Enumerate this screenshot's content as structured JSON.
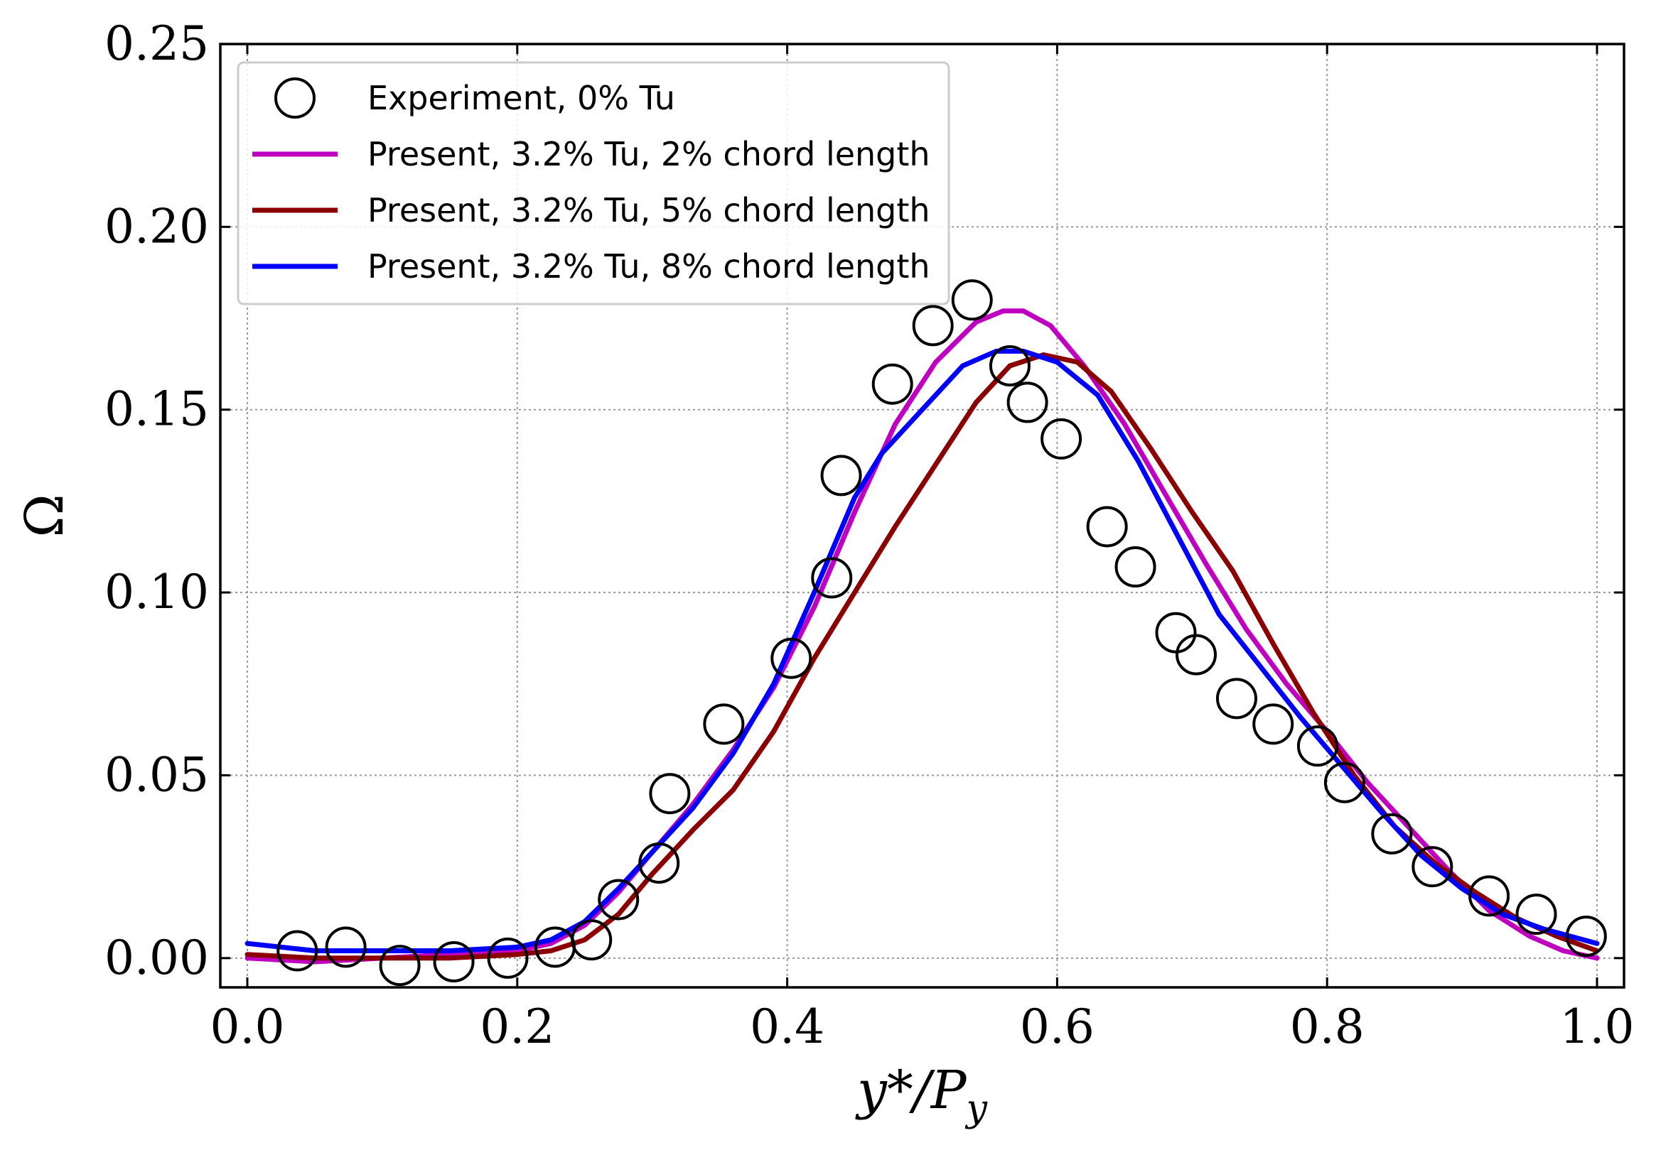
{
  "chart_data": {
    "type": "line",
    "xlabel": "y*/P",
    "xlabel_sub": "y",
    "ylabel": "Ω",
    "xlim": [
      -0.02,
      1.02
    ],
    "ylim": [
      -0.008,
      0.25
    ],
    "xticks": [
      "0.0",
      "0.2",
      "0.4",
      "0.6",
      "0.8",
      "1.0"
    ],
    "xtick_values": [
      0.0,
      0.2,
      0.4,
      0.6,
      0.8,
      1.0
    ],
    "yticks": [
      "0.00",
      "0.05",
      "0.10",
      "0.15",
      "0.20",
      "0.25"
    ],
    "ytick_values": [
      0.0,
      0.05,
      0.1,
      0.15,
      0.2,
      0.25
    ],
    "grid": true,
    "legend_position": "top-left",
    "colors": {
      "experiment": "#000000",
      "magenta": "#c000c0",
      "darkred": "#8b0000",
      "blue": "#0000ff"
    },
    "series": [
      {
        "name": "Experiment, 0% Tu",
        "kind": "scatter",
        "marker": "open-circle",
        "color": "#000000",
        "x": [
          0.037,
          0.073,
          0.113,
          0.153,
          0.193,
          0.228,
          0.255,
          0.275,
          0.305,
          0.313,
          0.353,
          0.403,
          0.433,
          0.44,
          0.478,
          0.508,
          0.537,
          0.565,
          0.578,
          0.603,
          0.637,
          0.658,
          0.688,
          0.703,
          0.733,
          0.76,
          0.793,
          0.813,
          0.848,
          0.878,
          0.92,
          0.955,
          0.992
        ],
        "y": [
          0.002,
          0.003,
          -0.002,
          -0.001,
          0.0,
          0.003,
          0.005,
          0.016,
          0.026,
          0.045,
          0.064,
          0.082,
          0.104,
          0.132,
          0.157,
          0.173,
          0.18,
          0.162,
          0.152,
          0.142,
          0.118,
          0.107,
          0.089,
          0.083,
          0.071,
          0.064,
          0.058,
          0.048,
          0.034,
          0.025,
          0.017,
          0.012,
          0.006
        ]
      },
      {
        "name": "Present, 3.2% Tu, 2% chord length",
        "kind": "line",
        "color": "#c000c0",
        "x": [
          0.0,
          0.05,
          0.1,
          0.15,
          0.2,
          0.225,
          0.25,
          0.275,
          0.3,
          0.33,
          0.36,
          0.39,
          0.42,
          0.45,
          0.48,
          0.51,
          0.54,
          0.56,
          0.575,
          0.595,
          0.62,
          0.65,
          0.68,
          0.71,
          0.74,
          0.77,
          0.8,
          0.83,
          0.86,
          0.89,
          0.92,
          0.95,
          0.975,
          1.0
        ],
        "y": [
          0.0,
          -0.001,
          0.0,
          0.001,
          0.002,
          0.004,
          0.009,
          0.018,
          0.029,
          0.042,
          0.057,
          0.074,
          0.096,
          0.122,
          0.146,
          0.163,
          0.174,
          0.177,
          0.177,
          0.173,
          0.162,
          0.146,
          0.127,
          0.108,
          0.09,
          0.075,
          0.062,
          0.048,
          0.036,
          0.024,
          0.013,
          0.006,
          0.002,
          0.0
        ]
      },
      {
        "name": "Present, 3.2% Tu, 5% chord length",
        "kind": "line",
        "color": "#8b0000",
        "x": [
          0.0,
          0.05,
          0.1,
          0.15,
          0.2,
          0.225,
          0.25,
          0.275,
          0.3,
          0.33,
          0.36,
          0.39,
          0.42,
          0.45,
          0.48,
          0.51,
          0.54,
          0.565,
          0.59,
          0.615,
          0.64,
          0.67,
          0.7,
          0.73,
          0.76,
          0.79,
          0.82,
          0.85,
          0.88,
          0.91,
          0.94,
          0.97,
          1.0
        ],
        "y": [
          0.001,
          0.0,
          0.0,
          0.0,
          0.001,
          0.002,
          0.005,
          0.012,
          0.023,
          0.035,
          0.046,
          0.062,
          0.082,
          0.1,
          0.118,
          0.135,
          0.152,
          0.162,
          0.165,
          0.163,
          0.155,
          0.139,
          0.122,
          0.106,
          0.086,
          0.067,
          0.05,
          0.036,
          0.026,
          0.018,
          0.011,
          0.006,
          0.002
        ]
      },
      {
        "name": "Present, 3.2% Tu, 8% chord length",
        "kind": "line",
        "color": "#0000ff",
        "x": [
          0.0,
          0.05,
          0.1,
          0.15,
          0.2,
          0.225,
          0.25,
          0.275,
          0.3,
          0.33,
          0.36,
          0.39,
          0.42,
          0.45,
          0.47,
          0.5,
          0.53,
          0.555,
          0.575,
          0.6,
          0.63,
          0.66,
          0.69,
          0.72,
          0.75,
          0.78,
          0.81,
          0.84,
          0.87,
          0.9,
          0.93,
          0.96,
          1.0
        ],
        "y": [
          0.004,
          0.002,
          0.002,
          0.002,
          0.003,
          0.005,
          0.01,
          0.019,
          0.029,
          0.041,
          0.056,
          0.075,
          0.1,
          0.126,
          0.138,
          0.15,
          0.162,
          0.166,
          0.166,
          0.163,
          0.154,
          0.136,
          0.115,
          0.094,
          0.08,
          0.066,
          0.053,
          0.04,
          0.028,
          0.019,
          0.012,
          0.008,
          0.004
        ]
      }
    ]
  }
}
